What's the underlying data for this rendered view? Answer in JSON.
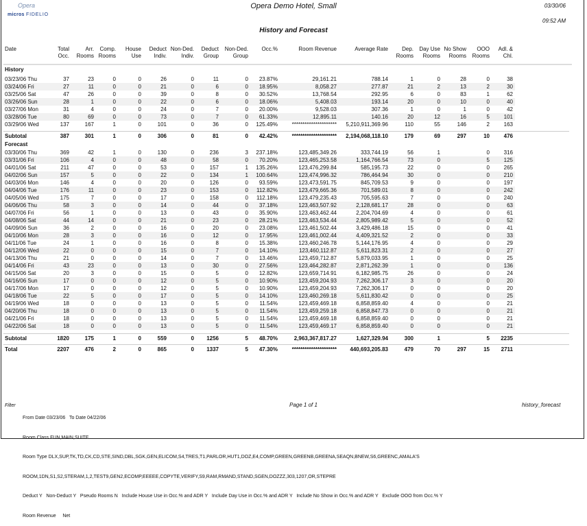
{
  "header": {
    "logo_top": "Opera",
    "logo_brand": "micros",
    "logo_brand2": "FIDELIO",
    "hotel": "Opera Demo Hotel, Small",
    "date": "03/30/06",
    "time": "09:52 AM",
    "title": "History and Forecast"
  },
  "columns": [
    "Date",
    "Total\nOcc.",
    "Arr.\nRooms",
    "Comp.\nRooms",
    "House\nUse",
    "Deduct\nIndiv.",
    "Non-Ded.\nIndiv.",
    "Deduct\nGroup",
    "Non-Ded.\nGroup",
    "Occ.%",
    "Room Revenue",
    "Average Rate",
    "Dep.\nRooms",
    "Day Use\nRooms",
    "No Show\nRooms",
    "OOO\nRooms",
    "Adl. &\nChl."
  ],
  "history": {
    "label": "History",
    "rows": [
      [
        "03/23/06 Thu",
        "37",
        "23",
        "0",
        "0",
        "26",
        "0",
        "11",
        "0",
        "23.87%",
        "29,161.21",
        "788.14",
        "1",
        "0",
        "28",
        "0",
        "38"
      ],
      [
        "03/24/06 Fri",
        "27",
        "11",
        "0",
        "0",
        "21",
        "0",
        "6",
        "0",
        "18.95%",
        "8,058.27",
        "277.87",
        "21",
        "2",
        "13",
        "2",
        "30"
      ],
      [
        "03/25/06 Sat",
        "47",
        "26",
        "0",
        "0",
        "39",
        "0",
        "8",
        "0",
        "30.52%",
        "13,768.54",
        "292.95",
        "6",
        "0",
        "83",
        "1",
        "62"
      ],
      [
        "03/26/06 Sun",
        "28",
        "1",
        "0",
        "0",
        "22",
        "0",
        "6",
        "0",
        "18.06%",
        "5,408.03",
        "193.14",
        "20",
        "0",
        "10",
        "0",
        "40"
      ],
      [
        "03/27/06 Mon",
        "31",
        "4",
        "0",
        "0",
        "24",
        "0",
        "7",
        "0",
        "20.00%",
        "9,528.03",
        "307.36",
        "1",
        "0",
        "1",
        "0",
        "42"
      ],
      [
        "03/28/06 Tue",
        "80",
        "69",
        "0",
        "0",
        "73",
        "0",
        "7",
        "0",
        "61.33%",
        "12,895.11",
        "140.16",
        "20",
        "12",
        "16",
        "5",
        "101"
      ],
      [
        "03/29/06 Wed",
        "137",
        "167",
        "1",
        "0",
        "101",
        "0",
        "36",
        "0",
        "125.49%",
        "*********************",
        "5,210,911,369.96",
        "110",
        "55",
        "146",
        "2",
        "163"
      ]
    ],
    "subtotal": [
      "Subtotal",
      "387",
      "301",
      "1",
      "0",
      "306",
      "0",
      "81",
      "0",
      "42.42%",
      "*********************",
      "2,194,068,118.10",
      "179",
      "69",
      "297",
      "10",
      "476"
    ]
  },
  "forecast": {
    "label": "Forecast",
    "rows": [
      [
        "03/30/06 Thu",
        "369",
        "42",
        "1",
        "0",
        "130",
        "0",
        "236",
        "3",
        "237.18%",
        "123,485,349.26",
        "333,744.19",
        "56",
        "1",
        "",
        "0",
        "316"
      ],
      [
        "03/31/06 Fri",
        "106",
        "4",
        "0",
        "0",
        "48",
        "0",
        "58",
        "0",
        "70.20%",
        "123,465,253.58",
        "1,164,766.54",
        "73",
        "0",
        "",
        "5",
        "125"
      ],
      [
        "04/01/06 Sat",
        "211",
        "47",
        "0",
        "0",
        "53",
        "0",
        "157",
        "1",
        "135.26%",
        "123,476,299.84",
        "585,195.73",
        "22",
        "0",
        "",
        "0",
        "265"
      ],
      [
        "04/02/06 Sun",
        "157",
        "5",
        "0",
        "0",
        "22",
        "0",
        "134",
        "1",
        "100.64%",
        "123,474,996.32",
        "786,464.94",
        "30",
        "0",
        "",
        "0",
        "210"
      ],
      [
        "04/03/06 Mon",
        "146",
        "4",
        "0",
        "0",
        "20",
        "0",
        "126",
        "0",
        "93.59%",
        "123,473,591.75",
        "845,709.53",
        "9",
        "0",
        "",
        "0",
        "197"
      ],
      [
        "04/04/06 Tue",
        "176",
        "11",
        "0",
        "0",
        "23",
        "0",
        "153",
        "0",
        "112.82%",
        "123,479,665.36",
        "701,589.01",
        "8",
        "0",
        "",
        "0",
        "242"
      ],
      [
        "04/05/06 Wed",
        "175",
        "7",
        "0",
        "0",
        "17",
        "0",
        "158",
        "0",
        "112.18%",
        "123,479,235.43",
        "705,595.63",
        "7",
        "0",
        "",
        "0",
        "240"
      ],
      [
        "04/06/06 Thu",
        "58",
        "3",
        "0",
        "0",
        "14",
        "0",
        "44",
        "0",
        "37.18%",
        "123,463,507.92",
        "2,128,681.17",
        "28",
        "0",
        "",
        "0",
        "63"
      ],
      [
        "04/07/06 Fri",
        "56",
        "1",
        "0",
        "0",
        "13",
        "0",
        "43",
        "0",
        "35.90%",
        "123,463,462.44",
        "2,204,704.69",
        "4",
        "0",
        "",
        "0",
        "61"
      ],
      [
        "04/08/06 Sat",
        "44",
        "14",
        "0",
        "0",
        "21",
        "0",
        "23",
        "0",
        "28.21%",
        "123,463,534.44",
        "2,805,989.42",
        "5",
        "0",
        "",
        "0",
        "52"
      ],
      [
        "04/09/06 Sun",
        "36",
        "2",
        "0",
        "0",
        "16",
        "0",
        "20",
        "0",
        "23.08%",
        "123,461,502.44",
        "3,429,486.18",
        "15",
        "0",
        "",
        "0",
        "41"
      ],
      [
        "04/10/06 Mon",
        "28",
        "3",
        "0",
        "0",
        "16",
        "0",
        "12",
        "0",
        "17.95%",
        "123,461,002.44",
        "4,409,321.52",
        "2",
        "0",
        "",
        "0",
        "33"
      ],
      [
        "04/11/06 Tue",
        "24",
        "1",
        "0",
        "0",
        "16",
        "0",
        "8",
        "0",
        "15.38%",
        "123,460,246.78",
        "5,144,176.95",
        "4",
        "0",
        "",
        "0",
        "29"
      ],
      [
        "04/12/06 Wed",
        "22",
        "0",
        "0",
        "0",
        "15",
        "0",
        "7",
        "0",
        "14.10%",
        "123,460,112.87",
        "5,611,823.31",
        "2",
        "0",
        "",
        "0",
        "27"
      ],
      [
        "04/13/06 Thu",
        "21",
        "0",
        "0",
        "0",
        "14",
        "0",
        "7",
        "0",
        "13.46%",
        "123,459,712.87",
        "5,879,033.95",
        "1",
        "0",
        "",
        "0",
        "25"
      ],
      [
        "04/14/06 Fri",
        "43",
        "23",
        "0",
        "0",
        "13",
        "0",
        "30",
        "0",
        "27.56%",
        "123,464,282.87",
        "2,871,262.39",
        "1",
        "0",
        "",
        "0",
        "136"
      ],
      [
        "04/15/06 Sat",
        "20",
        "3",
        "0",
        "0",
        "15",
        "0",
        "5",
        "0",
        "12.82%",
        "123,659,714.91",
        "6,182,985.75",
        "26",
        "0",
        "",
        "0",
        "24"
      ],
      [
        "04/16/06 Sun",
        "17",
        "0",
        "0",
        "0",
        "12",
        "0",
        "5",
        "0",
        "10.90%",
        "123,459,204.93",
        "7,262,306.17",
        "3",
        "0",
        "",
        "0",
        "20"
      ],
      [
        "04/17/06 Mon",
        "17",
        "0",
        "0",
        "0",
        "12",
        "0",
        "5",
        "0",
        "10.90%",
        "123,459,204.93",
        "7,262,306.17",
        "0",
        "0",
        "",
        "0",
        "20"
      ],
      [
        "04/18/06 Tue",
        "22",
        "5",
        "0",
        "0",
        "17",
        "0",
        "5",
        "0",
        "14.10%",
        "123,460,269.18",
        "5,611,830.42",
        "0",
        "0",
        "",
        "0",
        "25"
      ],
      [
        "04/19/06 Wed",
        "18",
        "0",
        "0",
        "0",
        "13",
        "0",
        "5",
        "0",
        "11.54%",
        "123,459,469.18",
        "6,858,859.40",
        "4",
        "0",
        "",
        "0",
        "21"
      ],
      [
        "04/20/06 Thu",
        "18",
        "0",
        "0",
        "0",
        "13",
        "0",
        "5",
        "0",
        "11.54%",
        "123,459,259.18",
        "6,858,847.73",
        "0",
        "0",
        "",
        "0",
        "21"
      ],
      [
        "04/21/06 Fri",
        "18",
        "0",
        "0",
        "0",
        "13",
        "0",
        "5",
        "0",
        "11.54%",
        "123,459,469.18",
        "6,858,859.40",
        "0",
        "0",
        "",
        "0",
        "21"
      ],
      [
        "04/22/06 Sat",
        "18",
        "0",
        "0",
        "0",
        "13",
        "0",
        "5",
        "0",
        "11.54%",
        "123,459,469.17",
        "6,858,859.40",
        "0",
        "0",
        "",
        "0",
        "21"
      ]
    ],
    "subtotal": [
      "Subtotal",
      "1820",
      "175",
      "1",
      "0",
      "559",
      "0",
      "1256",
      "5",
      "48.70%",
      "2,963,367,817.27",
      "1,627,329.94",
      "300",
      "1",
      "",
      "5",
      "2235"
    ]
  },
  "total": [
    "Total",
    "2207",
    "476",
    "2",
    "0",
    "865",
    "0",
    "1337",
    "5",
    "47.30%",
    "*********************",
    "440,693,205.83",
    "479",
    "70",
    "297",
    "15",
    "2711"
  ],
  "footer": {
    "filter_label": "Filter",
    "lines": [
      "From Date 03/23/06   To Date 04/22/06",
      "Room Class FUN,MAIN,SUITE",
      "Room Type DLX,SUP,TK,TD,CK,CD,STE,SIND,DBL,SGK,GEN,ELICOM,S4,TRES,T1,PARLOR,HUT1,DOZ,E4,COMP,GREEN,GREENB,GREENA,SEAQN,BNEW,S6,GREENC,AMALA'S",
      "ROOM,1DN,S1,S2,STERAM,1,2,TEST9,GEN2,ECOMP,EEEEE,COPYTE,VERIFY,S9,RAM,RMAND,STAND,SGEN,DOZZZ,303,1207,OR,STEPRE",
      "Deduct Y   Non-Deduct Y   Pseudo Rooms N   Include House Use in Occ.% and ADR Y   Include Day Use in Occ.% and ADR Y   Include No Show in Occ.% and ADR Y   Exclude OOO from Occ.% Y",
      "Room Revenue     Net"
    ],
    "page": "Page 1 of 1",
    "report_name": "history_forecast"
  }
}
